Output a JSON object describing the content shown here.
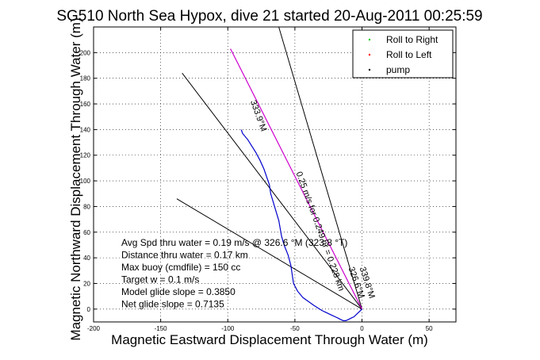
{
  "chart_data": {
    "type": "line",
    "title": "SG510 North Sea Hypox, dive 21 started 20-Aug-2011 00:25:59",
    "xlabel": "Magnetic Eastward Displacement Through Water (m)",
    "ylabel": "Magnetic Northward Displacement Through Water (m)",
    "xlim": [
      -200,
      70
    ],
    "ylim": [
      -10,
      220
    ],
    "xticks": [
      -200,
      -150,
      -100,
      -50,
      0,
      50
    ],
    "yticks": [
      0,
      20,
      40,
      60,
      80,
      100,
      120,
      140,
      160,
      180,
      200
    ],
    "grid": true,
    "legend_position": "top-right",
    "series": [
      {
        "name": "Roll to Right",
        "color": "#00cc00",
        "style": "points",
        "x": [],
        "y": []
      },
      {
        "name": "Roll to Left",
        "color": "#ff0000",
        "style": "points",
        "x": [],
        "y": []
      },
      {
        "name": "pump",
        "color": "#000000",
        "style": "points",
        "x": [],
        "y": []
      }
    ],
    "track": {
      "color": "#0000cc",
      "x": [
        0,
        -2,
        -4,
        -6,
        -8,
        -10,
        -12,
        -14,
        -16,
        -18,
        -20,
        -22,
        -24,
        -26,
        -28,
        -30,
        -33,
        -36,
        -40,
        -44,
        -48,
        -51,
        -52,
        -53,
        -55,
        -58,
        -60,
        -61,
        -62,
        -64,
        -66,
        -68,
        -69,
        -71,
        -73,
        -76,
        -79,
        -82,
        -85,
        -89,
        -90
      ],
      "y": [
        0,
        -2,
        -4,
        -6,
        -7,
        -8,
        -9,
        -9,
        -8,
        -7,
        -6,
        -5,
        -4,
        -3,
        -2,
        -1,
        1,
        3,
        6,
        9,
        14,
        20,
        27,
        34,
        42,
        50,
        57,
        63,
        69,
        76,
        83,
        90,
        97,
        103,
        109,
        116,
        122,
        127,
        132,
        137,
        140
      ]
    },
    "annotation_lines": [
      {
        "label": "",
        "color": "#000000",
        "x": [
          0,
          -134
        ],
        "y": [
          0,
          184
        ]
      },
      {
        "label": "",
        "color": "#000000",
        "x": [
          0,
          -62
        ],
        "y": [
          0,
          220
        ]
      },
      {
        "label": "",
        "color": "#000000",
        "x": [
          0,
          -138
        ],
        "y": [
          0,
          86
        ]
      }
    ],
    "ctd_line": {
      "color": "#cc00cc",
      "x": [
        0,
        -98
      ],
      "y": [
        0,
        203
      ]
    },
    "rotated_labels": [
      {
        "text": "333.9°M",
        "x": -79,
        "y": 150,
        "angle": 70
      },
      {
        "text": "0.25 m/s for 0.249 hr = 0.228 km",
        "x": -33,
        "y": 60,
        "angle": 70
      },
      {
        "text": "326.6°M",
        "x": -6,
        "y": 20,
        "angle": 70
      },
      {
        "text": "339.8°M",
        "x": 2,
        "y": 20,
        "angle": 72
      }
    ],
    "annotations": [
      "Avg Spd thru water = 0.19 m/s @ 326.6 °M (323.8 °T)",
      "Distance thru water = 0.17 km",
      "Max buoy (cmdfile) = 150 cc",
      "Target w = 0.1 m/s",
      "Model glide slope = 0.3850",
      "Net glide slope = 0.7135"
    ]
  }
}
